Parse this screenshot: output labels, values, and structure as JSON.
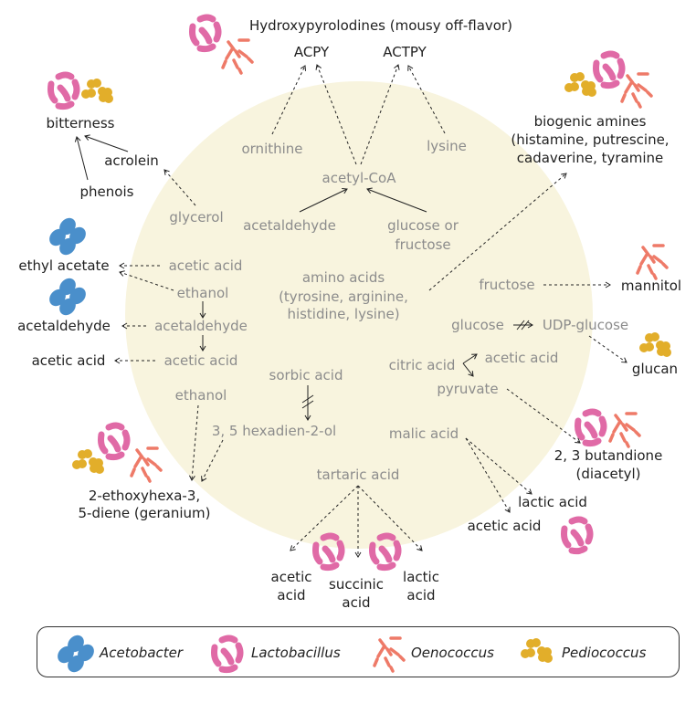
{
  "colors": {
    "circle": "#f8f4de",
    "acetobacter": "#4a8fcb",
    "lactobacillus": "#e06aa6",
    "oenococcus": "#ee7a68",
    "pediococcus": "#e2ae2a",
    "gray_text": "#8c8c8c",
    "black_text": "#1f1f1f"
  },
  "top": {
    "title": "Hydroxypyrolodines (mousy off-flavor)",
    "acpy": "ACPY",
    "actpy": "ACTPY",
    "ornithine": "ornithine",
    "lysine": "lysine",
    "acetyl_coa": "acetyl-CoA",
    "acetaldehyde": "acetaldehyde",
    "glucose_or": "glucose or",
    "fructose": "fructose"
  },
  "left": {
    "bitterness": "bitterness",
    "acrolein": "acrolein",
    "phenois": "phenois",
    "glycerol": "glycerol",
    "ethyl_acetate": "ethyl acetate",
    "acetic_acid_in": "acetic acid",
    "ethanol_in": "ethanol",
    "acetaldehyde_out": "acetaldehyde",
    "acetaldehyde_in": "acetaldehyde",
    "acetic_acid_out": "acetic acid",
    "acetic_acid_in2": "acetic acid",
    "ethanol_in2": "ethanol",
    "sorbic_acid": "sorbic acid",
    "hexadienol": "3, 5 hexadien-2-ol",
    "geranium_1": "2-ethoxyhexa-3,",
    "geranium_2": "5-diene (geranium)"
  },
  "center": {
    "amino_1": "amino acids",
    "amino_2": "(tyrosine, arginine,",
    "amino_3": "histidine, lysine)",
    "tartaric": "tartaric acid"
  },
  "right": {
    "biogenic_1": "biogenic amines",
    "biogenic_2": "(histamine, putrescine,",
    "biogenic_3": "cadaverine, tyramine",
    "fructose": "fructose",
    "mannitol": "mannitol",
    "glucose": "glucose",
    "udp_glucose": "UDP-glucose",
    "glucan": "glucan",
    "citric_acid": "citric acid",
    "acetic_acid": "acetic acid",
    "pyruvate": "pyruvate",
    "malic_acid": "malic acid",
    "butandione_1": "2, 3 butandione",
    "butandione_2": "(diacetyl)",
    "lactic_acid": "lactic acid",
    "acetic_acid_out": "acetic acid"
  },
  "bottom": {
    "acetic_1": "acetic",
    "acetic_2": "acid",
    "succinic_1": "succinic",
    "succinic_2": "acid",
    "lactic_1": "lactic",
    "lactic_2": "acid"
  },
  "legend": {
    "acetobacter": "Acetobacter",
    "lactobacillus": "Lactobacillus",
    "oenococcus": "Oenococcus",
    "pediococcus": "Pediococcus"
  }
}
